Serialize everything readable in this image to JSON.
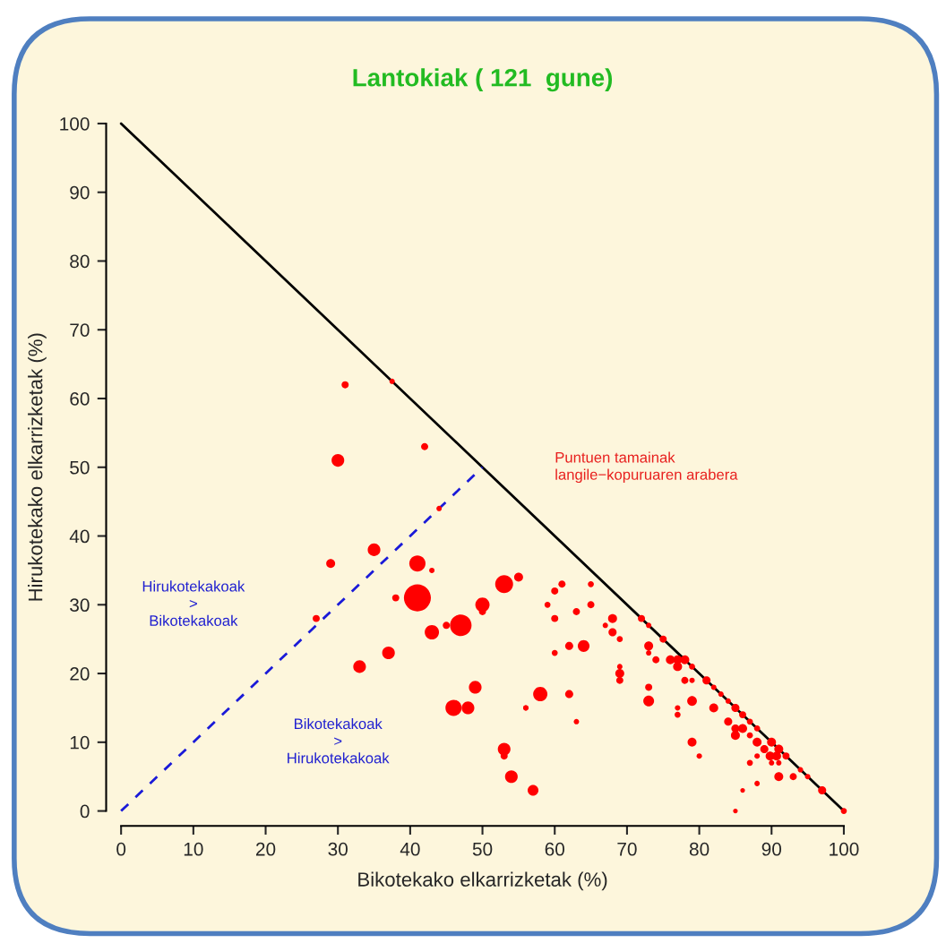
{
  "chart_data": {
    "type": "bubble",
    "title": "Lantokiak ( 121  gune)",
    "xlabel": "Bikotekako elkarrizketak (%)",
    "ylabel": "Hirukotekako elkarrizketak (%)",
    "xlim": [
      0,
      100
    ],
    "ylim": [
      0,
      100
    ],
    "xticks": [
      0,
      10,
      20,
      30,
      40,
      50,
      60,
      70,
      80,
      90,
      100
    ],
    "yticks": [
      0,
      10,
      20,
      30,
      40,
      50,
      60,
      70,
      80,
      90,
      100
    ],
    "grid": false,
    "legend": false,
    "annotations": [
      "Puntuen tamainak\nlangile−kopuruaren arabera",
      "Hirukotekakoak\n>\nBikotekakoak",
      "Bikotekakoak\n>\nHirukotekakoak"
    ],
    "series": [
      {
        "type": "line",
        "color": "#000000",
        "line_style": "solid",
        "marker": "none",
        "x": [
          0,
          100
        ],
        "values": [
          100,
          0
        ]
      },
      {
        "type": "line",
        "color": "#1a1ad8",
        "line_style": "dashed",
        "marker": "none",
        "x": [
          0,
          50
        ],
        "values": [
          0,
          50
        ]
      },
      {
        "color": "#ff0000",
        "marker": "circle",
        "x": [
          31,
          37.5,
          30,
          42,
          44,
          29,
          35,
          41,
          43,
          38,
          41,
          27,
          43,
          47,
          45,
          53,
          55,
          50,
          50,
          33,
          37,
          49,
          46,
          48,
          58,
          56,
          53,
          53,
          54,
          57,
          61,
          60,
          65,
          59,
          65,
          63,
          60,
          68,
          67,
          68,
          69,
          72,
          73,
          75,
          62,
          64,
          60,
          73,
          73,
          74,
          76,
          77,
          78,
          77,
          69,
          69,
          69,
          78,
          73,
          73,
          77,
          77,
          62,
          56,
          63,
          79,
          79,
          79,
          81,
          82,
          83,
          84,
          79,
          82,
          85,
          86,
          87,
          84,
          85,
          86,
          85,
          87,
          88,
          88,
          90,
          89,
          91,
          89.8,
          90.7,
          92,
          88,
          90,
          91,
          87,
          80,
          94,
          95,
          91,
          93,
          88,
          97,
          86,
          85,
          100
        ],
        "values": [
          62,
          62.5,
          51,
          53,
          44,
          36,
          38,
          36,
          35,
          31,
          31,
          28,
          26,
          27,
          27,
          33,
          34,
          30,
          29,
          21,
          23,
          18,
          15,
          15,
          17,
          15,
          9,
          8,
          5,
          3,
          33,
          32,
          33,
          30,
          30,
          29,
          28,
          28,
          27,
          26,
          25,
          28,
          27,
          25,
          24,
          24,
          23,
          24,
          23,
          22,
          22,
          22,
          22,
          21,
          21,
          20,
          19,
          19,
          18,
          16,
          15,
          14,
          17,
          15,
          13,
          10,
          21,
          19,
          19,
          18,
          17,
          16,
          16,
          15,
          15,
          14,
          13,
          13,
          12,
          12,
          11,
          11,
          12,
          10,
          10,
          9,
          9,
          8,
          8,
          8,
          8,
          7,
          7,
          7,
          8,
          6,
          5,
          5,
          5,
          4,
          3,
          3,
          0,
          0
        ],
        "sizes": [
          0.07,
          0.04,
          0.22,
          0.07,
          0.04,
          0.11,
          0.22,
          0.36,
          0.04,
          0.07,
          1,
          0.07,
          0.28,
          0.64,
          0.07,
          0.44,
          0.11,
          0.28,
          0.07,
          0.22,
          0.22,
          0.22,
          0.36,
          0.22,
          0.28,
          0.04,
          0.22,
          0.07,
          0.22,
          0.16,
          0.07,
          0.07,
          0.05,
          0.05,
          0.07,
          0.07,
          0.07,
          0.11,
          0.04,
          0.09,
          0.05,
          0.07,
          0.04,
          0.07,
          0.09,
          0.19,
          0.05,
          0.11,
          0.04,
          0.07,
          0.11,
          0.11,
          0.11,
          0.11,
          0.04,
          0.11,
          0.07,
          0.07,
          0.07,
          0.16,
          0.04,
          0.05,
          0.09,
          0.04,
          0.04,
          0.11,
          0.05,
          0.04,
          0.09,
          0.04,
          0.04,
          0.04,
          0.13,
          0.11,
          0.09,
          0.07,
          0.05,
          0.09,
          0.09,
          0.11,
          0.11,
          0.05,
          0.05,
          0.11,
          0.11,
          0.09,
          0.11,
          0.11,
          0.11,
          0.07,
          0.04,
          0.04,
          0.04,
          0.05,
          0.04,
          0.04,
          0.04,
          0.11,
          0.07,
          0.04,
          0.09,
          0.03,
          0.03,
          0.05
        ]
      }
    ]
  }
}
